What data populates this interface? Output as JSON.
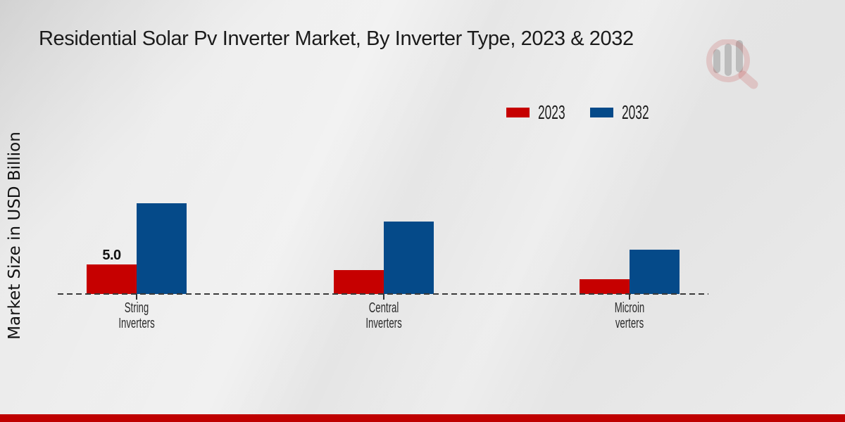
{
  "title": "Residential Solar Pv Inverter Market, By Inverter Type, 2023 & 2032",
  "y_axis_label": "Market Size in USD Billion",
  "legend": {
    "items": [
      {
        "label": "2023",
        "color": "#c60000"
      },
      {
        "label": "2032",
        "color": "#054a89"
      }
    ]
  },
  "footer_bar_color": "#bf0000",
  "watermark_icon": "magnifier-bar-chart-logo",
  "chart_data": {
    "type": "bar",
    "title": "Residential Solar Pv Inverter Market, By Inverter Type, 2023 & 2032",
    "xlabel": "",
    "ylabel": "Market Size in USD Billion",
    "categories": [
      "String Inverters",
      "Central Inverters",
      "Microinverters"
    ],
    "categories_lines": [
      [
        "String",
        "Inverters"
      ],
      [
        "Central",
        "Inverters"
      ],
      [
        "Microin",
        "verters"
      ]
    ],
    "series": [
      {
        "name": "2023",
        "color": "#c60000",
        "values": [
          5.0,
          4.0,
          2.5
        ],
        "labels": [
          "5.0",
          "",
          ""
        ]
      },
      {
        "name": "2032",
        "color": "#054a89",
        "values": [
          15.3,
          12.25,
          7.5
        ],
        "labels": [
          "",
          "",
          ""
        ]
      }
    ],
    "baseline": 0,
    "grid": "off",
    "legend_position": "top-right",
    "axis_line_style": "dashed",
    "data_label_shown": "5.0 on String Inverters 2023 bar"
  }
}
